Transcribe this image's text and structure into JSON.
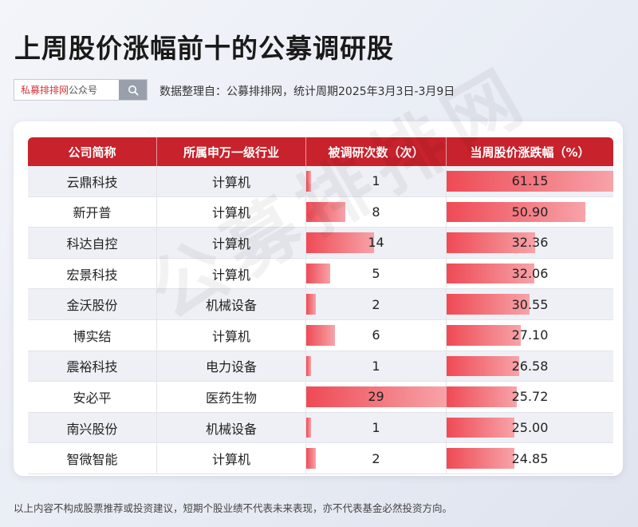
{
  "title": "上周股价涨幅前十的公募调研股",
  "search": {
    "brand_red": "私募排排网",
    "brand_gray": "公众号",
    "icon": "search-icon"
  },
  "subtitle": "数据整理自：公募排排网，统计周期2025年3月3日-3月9日",
  "watermark": "公募排排网",
  "footer": "以上内容不构成股票推荐或投资建议，短期个股业绩不代表未来表现，亦不代表基金必然投资方向。",
  "colors": {
    "header": "#c8222c",
    "bar_start": "#ef4a55",
    "bar_end": "#f7a3a8",
    "brand": "#d4363b"
  },
  "chart_data": {
    "type": "table",
    "columns": [
      "公司简称",
      "所属申万一级行业",
      "被调研次数（次）",
      "当周股价涨跌幅（%）"
    ],
    "rows": [
      {
        "company": "云鼎科技",
        "industry": "计算机",
        "surveys": 1,
        "surveys_label": "1",
        "change": 61.15,
        "change_label": "61.15"
      },
      {
        "company": "新开普",
        "industry": "计算机",
        "surveys": 8,
        "surveys_label": "8",
        "change": 50.9,
        "change_label": "50.90"
      },
      {
        "company": "科达自控",
        "industry": "计算机",
        "surveys": 14,
        "surveys_label": "14",
        "change": 32.36,
        "change_label": "32.36"
      },
      {
        "company": "宏景科技",
        "industry": "计算机",
        "surveys": 5,
        "surveys_label": "5",
        "change": 32.06,
        "change_label": "32.06"
      },
      {
        "company": "金沃股份",
        "industry": "机械设备",
        "surveys": 2,
        "surveys_label": "2",
        "change": 30.55,
        "change_label": "30.55"
      },
      {
        "company": "博实结",
        "industry": "计算机",
        "surveys": 6,
        "surveys_label": "6",
        "change": 27.1,
        "change_label": "27.10"
      },
      {
        "company": "震裕科技",
        "industry": "电力设备",
        "surveys": 1,
        "surveys_label": "1",
        "change": 26.58,
        "change_label": "26.58"
      },
      {
        "company": "安必平",
        "industry": "医药生物",
        "surveys": 29,
        "surveys_label": "29",
        "change": 25.72,
        "change_label": "25.72"
      },
      {
        "company": "南兴股份",
        "industry": "机械设备",
        "surveys": 1,
        "surveys_label": "1",
        "change": 25.0,
        "change_label": "25.00"
      },
      {
        "company": "智微智能",
        "industry": "计算机",
        "surveys": 2,
        "surveys_label": "2",
        "change": 24.85,
        "change_label": "24.85"
      }
    ]
  }
}
